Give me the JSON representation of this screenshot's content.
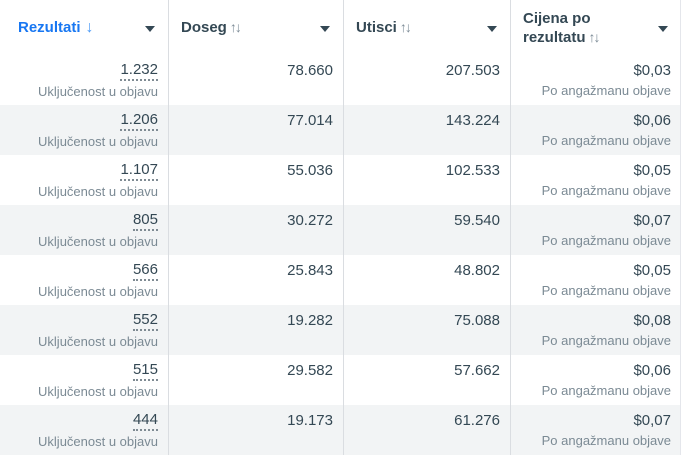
{
  "table": {
    "columns": [
      {
        "id": "rezultati",
        "label": "Rezultati",
        "sorted": true,
        "sort_direction": "desc"
      },
      {
        "id": "doseg",
        "label": "Doseg",
        "sorted": false
      },
      {
        "id": "utisci",
        "label": "Utisci",
        "sorted": false
      },
      {
        "id": "cijena",
        "label": "Cijena po rezultatu",
        "sorted": false
      }
    ],
    "result_type_label": "Uključenost u objavu",
    "cost_type_label": "Po angažmanu objave",
    "rows": [
      {
        "rezultati": "1.232",
        "doseg": "78.660",
        "utisci": "207.503",
        "cijena": "$0,03"
      },
      {
        "rezultati": "1.206",
        "doseg": "77.014",
        "utisci": "143.224",
        "cijena": "$0,06"
      },
      {
        "rezultati": "1.107",
        "doseg": "55.036",
        "utisci": "102.533",
        "cijena": "$0,05"
      },
      {
        "rezultati": "805",
        "doseg": "30.272",
        "utisci": "59.540",
        "cijena": "$0,07"
      },
      {
        "rezultati": "566",
        "doseg": "25.843",
        "utisci": "48.802",
        "cijena": "$0,05"
      },
      {
        "rezultati": "552",
        "doseg": "19.282",
        "utisci": "75.088",
        "cijena": "$0,08"
      },
      {
        "rezultati": "515",
        "doseg": "29.582",
        "utisci": "57.662",
        "cijena": "$0,06"
      },
      {
        "rezultati": "444",
        "doseg": "19.173",
        "utisci": "61.276",
        "cijena": "$0,07"
      }
    ]
  },
  "icons": {
    "sort_desc": "↓",
    "sort_both": "↑↓"
  },
  "colors": {
    "accent_blue": "#1877f2",
    "sort_arrow_blue": "#4e9cf7",
    "header_text": "#344854",
    "value_text": "#344854",
    "secondary_text": "#7b8a94",
    "row_stripe": "#f2f4f5",
    "divider": "#dadde1"
  }
}
